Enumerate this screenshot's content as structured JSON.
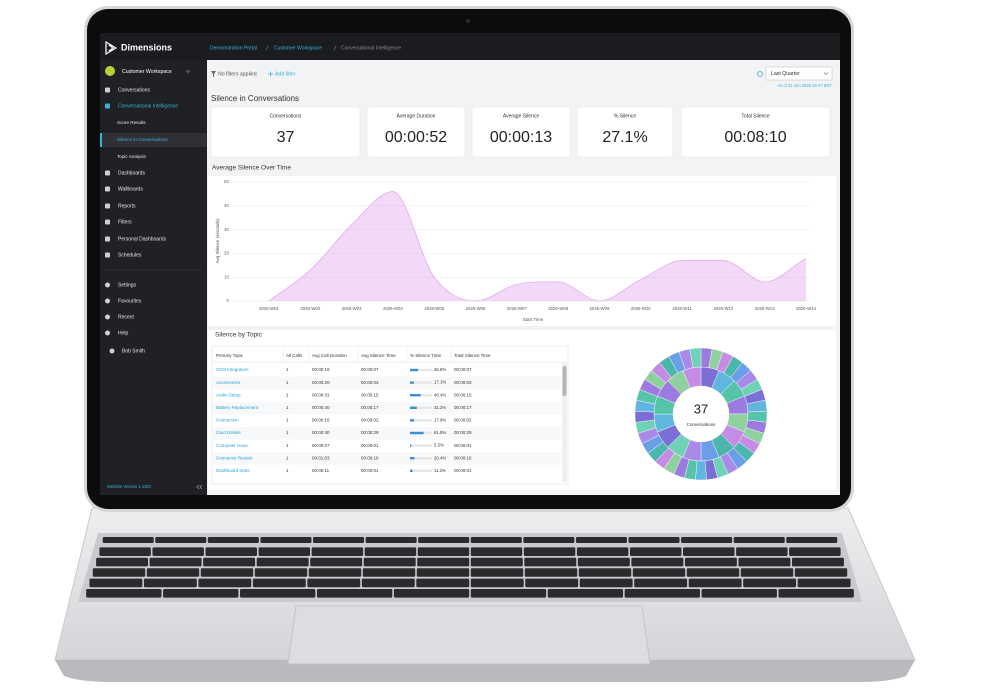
{
  "header": {
    "brand": "Dimensions",
    "breadcrumb": [
      "Demonstration Portal",
      "Customer Workspace",
      "Conversational Intelligence"
    ]
  },
  "sidebar": {
    "workspace": "Customer Workspace",
    "nav": [
      "Conversations",
      "Conversational Intelligence",
      "Score Results",
      "Silence in Conversations",
      "Topic Analysis",
      "Dashboards",
      "Wallboards",
      "Reports",
      "Filters",
      "Personal Dashboards",
      "Schedules"
    ],
    "bottom": [
      "Settings",
      "Favourites",
      "Recent",
      "Help",
      "Bob Smith"
    ],
    "version": "Website Version 1.1193"
  },
  "toolbar": {
    "filters": "No filters applied",
    "add_filter": "Add filter",
    "period": "Last Quarter",
    "as_of": "As of 31 Jun 2026 15:47 BST"
  },
  "section_title": "Silence in Conversations",
  "kpis": [
    {
      "label": "Conversations",
      "value": 37
    },
    {
      "label": "Average Duration",
      "value": "00:00:52"
    },
    {
      "label": "Average Silence",
      "value": "00:00:13"
    },
    {
      "label": "% Silence",
      "value": "27.1%"
    },
    {
      "label": "Total Silence",
      "value": "00:08:10"
    }
  ],
  "chart_data": {
    "type": "area",
    "title": "Average Silence Over Time",
    "x_label": "Start Time",
    "y_label": "Avg Silence (seconds)",
    "categories": [
      "2026-W01",
      "2026-W02",
      "2026-W03",
      "2026-W04",
      "2026-W05",
      "2026-W06",
      "2026-W07",
      "2026-W08",
      "2026-W09",
      "2026-W10",
      "2026-W11",
      "2026-W12",
      "2026-W13",
      "2026-W14"
    ],
    "values": [
      0,
      13,
      32,
      46,
      10,
      0,
      7,
      8,
      0,
      9,
      17,
      17,
      8,
      18
    ],
    "color": "#e3aaf0",
    "ylim": [
      0,
      50
    ],
    "yticks": [
      0,
      10,
      20,
      30,
      40,
      50
    ],
    "grid": true
  },
  "table": {
    "title": "Silence by Topic",
    "headers": [
      "Primary Topic",
      "All Calls",
      "Avg Call Duration",
      "Avg Silence Time",
      "% Silence Time",
      "Total Silence Time"
    ],
    "rows": [
      [
        "SCM Integration",
        1,
        "00:00:19",
        "00:00:07",
        {
          "value": 36.8,
          "label": "36.8%"
        },
        "00:00:07"
      ],
      [
        "Accessories",
        1,
        "00:00:20",
        "00:00:03",
        {
          "value": 17.1,
          "label": "17.1%"
        },
        "00:00:03"
      ],
      [
        "Audio Setup",
        1,
        "00:00:31",
        "00:00:15",
        {
          "value": 48.4,
          "label": "48.4%"
        },
        "00:00:15"
      ],
      [
        "Battery Replacement",
        1,
        "00:00:40",
        "00:00:17",
        {
          "value": 31.2,
          "label": "31.2%"
        },
        "00:00:17"
      ],
      [
        "Connection",
        1,
        "00:00:15",
        "00:00:02",
        {
          "value": 17.9,
          "label": "17.9%"
        },
        "00:00:02"
      ],
      [
        "Card Details",
        1,
        "00:00:40",
        "00:00:29",
        {
          "value": 61.8,
          "label": "61.8%"
        },
        "00:00:29"
      ],
      [
        "Computer Issue",
        1,
        "00:00:07",
        "00:00:01",
        {
          "value": 5.5,
          "label": "5.5%"
        },
        "00:00:01"
      ],
      [
        "Connector Restart",
        1,
        "00:01:03",
        "00:00:16",
        {
          "value": 20.4,
          "label": "20.4%"
        },
        "00:00:16"
      ],
      [
        "Dashboard Stats",
        1,
        "00:00:11",
        "00:00:01",
        {
          "value": 11.3,
          "label": "11.3%"
        },
        "00:00:01"
      ]
    ]
  },
  "donut": {
    "center_value": 37,
    "center_label": "Conversations"
  }
}
